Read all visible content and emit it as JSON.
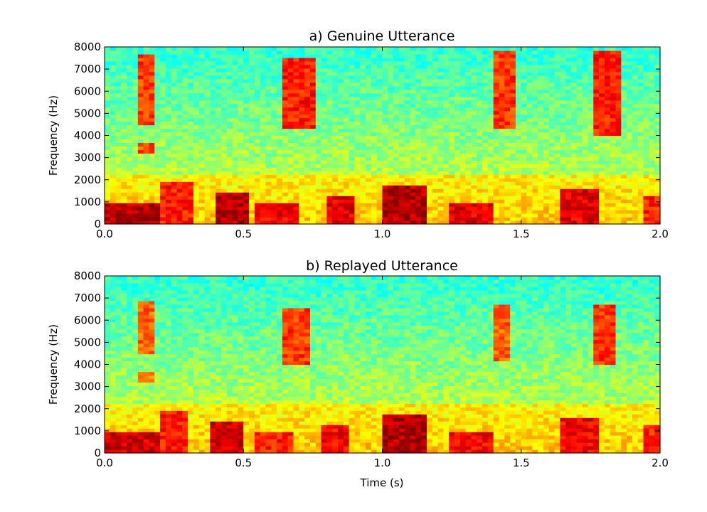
{
  "chart_data": [
    {
      "type": "heatmap",
      "title": "a) Genuine Utterance",
      "xlabel": "",
      "ylabel": "Frequency (Hz)",
      "xlim": [
        0.0,
        2.0
      ],
      "ylim": [
        0,
        8000
      ],
      "x_ticks": [
        "0.0",
        "0.5",
        "1.0",
        "1.5",
        "2.0"
      ],
      "y_ticks": [
        "0",
        "1000",
        "2000",
        "3000",
        "4000",
        "5000",
        "6000",
        "7000",
        "8000"
      ],
      "colormap": "jet",
      "regions": [
        {
          "t0": 0.0,
          "t1": 0.2,
          "f0": 0,
          "f1": 900,
          "level": 0.95
        },
        {
          "t0": 0.2,
          "t1": 0.32,
          "f0": 0,
          "f1": 1900,
          "level": 0.85
        },
        {
          "t0": 0.4,
          "t1": 0.52,
          "f0": 0,
          "f1": 1500,
          "level": 0.95
        },
        {
          "t0": 0.55,
          "t1": 0.7,
          "f0": 0,
          "f1": 1000,
          "level": 0.88
        },
        {
          "t0": 0.8,
          "t1": 0.9,
          "f0": 0,
          "f1": 1300,
          "level": 0.9
        },
        {
          "t0": 1.0,
          "t1": 1.15,
          "f0": 0,
          "f1": 1700,
          "level": 0.95
        },
        {
          "t0": 1.25,
          "t1": 1.4,
          "f0": 0,
          "f1": 1000,
          "level": 0.9
        },
        {
          "t0": 1.65,
          "t1": 1.78,
          "f0": 0,
          "f1": 1600,
          "level": 0.9
        },
        {
          "t0": 1.95,
          "t1": 2.0,
          "f0": 0,
          "f1": 1200,
          "level": 0.85
        },
        {
          "t0": 0.12,
          "t1": 0.18,
          "f0": 4500,
          "f1": 7700,
          "level": 0.82
        },
        {
          "t0": 0.65,
          "t1": 0.75,
          "f0": 4300,
          "f1": 7500,
          "level": 0.85
        },
        {
          "t0": 1.4,
          "t1": 1.47,
          "f0": 4300,
          "f1": 7800,
          "level": 0.82
        },
        {
          "t0": 1.77,
          "t1": 1.85,
          "f0": 4000,
          "f1": 7800,
          "level": 0.85
        },
        {
          "t0": 0.12,
          "t1": 0.18,
          "f0": 3200,
          "f1": 3700,
          "level": 0.8
        }
      ]
    },
    {
      "type": "heatmap",
      "title": "b) Replayed Utterance",
      "xlabel": "Time (s)",
      "ylabel": "Frequency (Hz)",
      "xlim": [
        0.0,
        2.0
      ],
      "ylim": [
        0,
        8000
      ],
      "x_ticks": [
        "0.0",
        "0.5",
        "1.0",
        "1.5",
        "2.0"
      ],
      "y_ticks": [
        "0",
        "1000",
        "2000",
        "3000",
        "4000",
        "5000",
        "6000",
        "7000",
        "8000"
      ],
      "colormap": "jet",
      "regions": [
        {
          "t0": 0.0,
          "t1": 0.2,
          "f0": 0,
          "f1": 900,
          "level": 0.92
        },
        {
          "t0": 0.2,
          "t1": 0.3,
          "f0": 0,
          "f1": 1900,
          "level": 0.85
        },
        {
          "t0": 0.38,
          "t1": 0.5,
          "f0": 0,
          "f1": 1500,
          "level": 0.92
        },
        {
          "t0": 0.55,
          "t1": 0.68,
          "f0": 0,
          "f1": 1000,
          "level": 0.85
        },
        {
          "t0": 0.78,
          "t1": 0.88,
          "f0": 0,
          "f1": 1300,
          "level": 0.88
        },
        {
          "t0": 1.0,
          "t1": 1.15,
          "f0": 0,
          "f1": 1700,
          "level": 0.95
        },
        {
          "t0": 1.25,
          "t1": 1.4,
          "f0": 0,
          "f1": 1000,
          "level": 0.88
        },
        {
          "t0": 1.65,
          "t1": 1.78,
          "f0": 0,
          "f1": 1600,
          "level": 0.88
        },
        {
          "t0": 1.95,
          "t1": 2.0,
          "f0": 0,
          "f1": 1200,
          "level": 0.85
        },
        {
          "t0": 0.12,
          "t1": 0.18,
          "f0": 4500,
          "f1": 6800,
          "level": 0.78
        },
        {
          "t0": 0.64,
          "t1": 0.74,
          "f0": 4000,
          "f1": 6600,
          "level": 0.82
        },
        {
          "t0": 1.4,
          "t1": 1.46,
          "f0": 4200,
          "f1": 6700,
          "level": 0.78
        },
        {
          "t0": 1.77,
          "t1": 1.84,
          "f0": 4000,
          "f1": 6700,
          "level": 0.82
        },
        {
          "t0": 0.12,
          "t1": 0.17,
          "f0": 3200,
          "f1": 3700,
          "level": 0.75
        }
      ]
    }
  ]
}
